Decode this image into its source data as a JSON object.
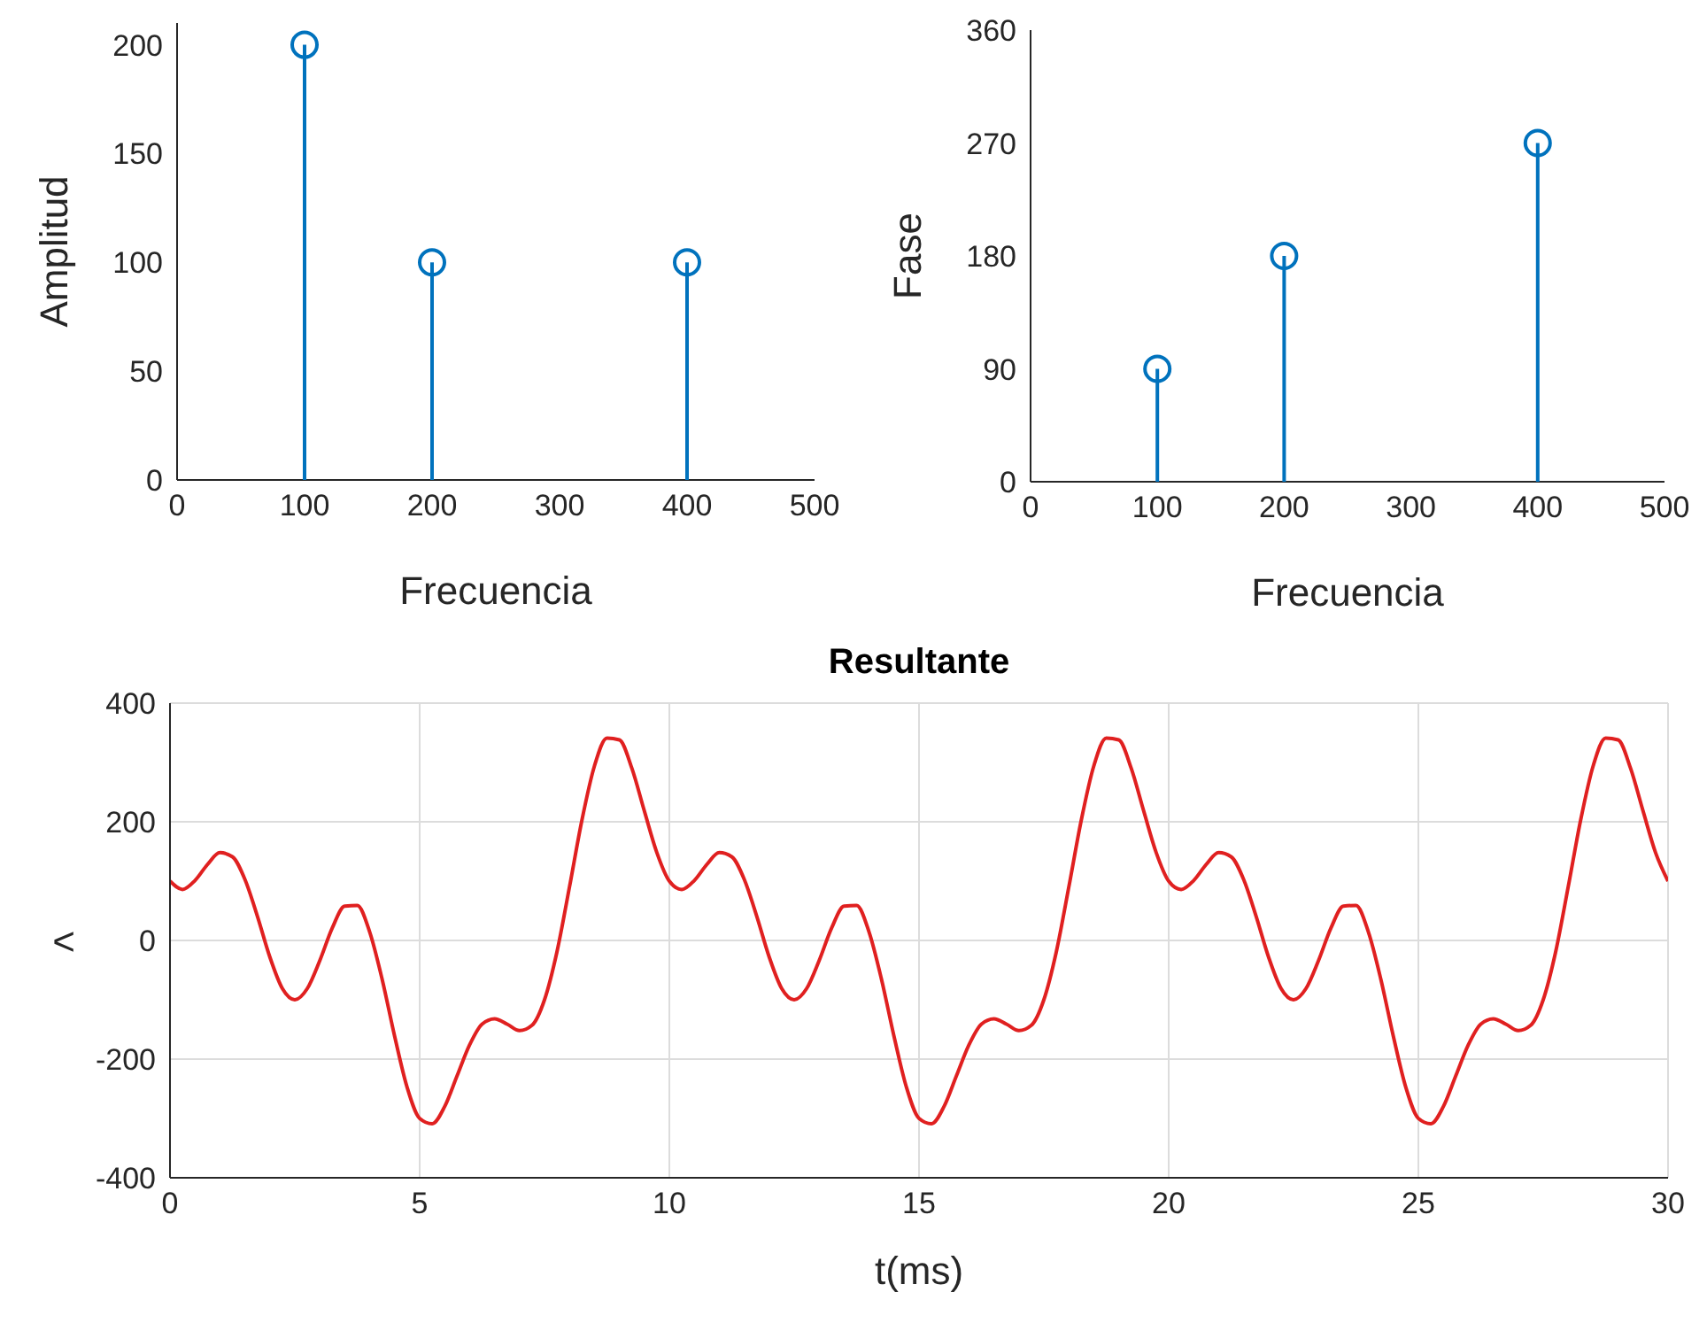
{
  "chart_data": [
    {
      "type": "lollipop",
      "xlabel": "Frecuencia",
      "ylabel": "Amplitud",
      "x": [
        100,
        200,
        400
      ],
      "values": [
        200,
        100,
        100
      ],
      "color": "#0072bd",
      "marker": "circle",
      "xlim": [
        0,
        500
      ],
      "xticks": [
        0,
        100,
        200,
        300,
        400,
        500
      ],
      "ylim": [
        0,
        210
      ],
      "yticks": [
        0,
        50,
        100,
        150,
        200
      ]
    },
    {
      "type": "lollipop",
      "xlabel": "Frecuencia",
      "ylabel": "Fase",
      "x": [
        100,
        200,
        400
      ],
      "values": [
        90,
        180,
        270
      ],
      "color": "#0072bd",
      "marker": "circle",
      "xlim": [
        0,
        500
      ],
      "xticks": [
        0,
        100,
        200,
        300,
        400,
        500
      ],
      "ylim": [
        0,
        360
      ],
      "yticks": [
        0,
        90,
        180,
        270,
        360
      ]
    },
    {
      "type": "line",
      "title": "Resultante",
      "xlabel": "t(ms)",
      "ylabel": "<",
      "color": "#e02020",
      "grid": true,
      "xlim": [
        0,
        30
      ],
      "xticks": [
        0,
        5,
        10,
        15,
        20,
        25,
        30
      ],
      "ylim": [
        -400,
        400
      ],
      "yticks": [
        -400,
        -200,
        0,
        200,
        400
      ],
      "x": [
        0,
        0.25,
        0.5,
        0.75,
        1,
        1.25,
        1.5,
        1.75,
        2,
        2.25,
        2.5,
        2.75,
        3,
        3.25,
        3.5,
        3.75,
        4,
        4.25,
        4.5,
        4.75,
        5,
        5.25,
        5.5,
        5.75,
        6,
        6.25,
        6.5,
        6.75,
        7,
        7.25,
        7.5,
        7.75,
        8,
        8.25,
        8.5,
        8.75,
        9,
        9.25,
        9.5,
        9.75,
        10,
        10.25,
        10.5,
        10.75,
        11,
        11.25,
        11.5,
        11.75,
        12,
        12.25,
        12.5,
        12.75,
        13,
        13.25,
        13.5,
        13.75,
        14,
        14.25,
        14.5,
        14.75,
        15,
        15.25,
        15.5,
        15.75,
        16,
        16.25,
        16.5,
        16.75,
        17,
        17.25,
        17.5,
        17.75,
        18,
        18.25,
        18.5,
        18.75,
        19,
        19.25,
        19.5,
        19.75,
        20,
        20.25,
        20.5,
        20.75,
        21,
        21.25,
        21.5,
        21.75,
        22,
        22.25,
        22.5,
        22.75,
        23,
        23.25,
        23.5,
        23.75,
        24,
        24.25,
        24.5,
        24.75,
        25,
        25.25,
        25.5,
        25.75,
        26,
        26.25,
        26.5,
        26.75,
        27,
        27.25,
        27.5,
        27.75,
        28,
        28.25,
        28.5,
        28.75,
        29,
        29.25,
        29.5,
        29.75,
        30
      ],
      "values": [
        100,
        86,
        101,
        128,
        148,
        141,
        103,
        41,
        -28,
        -81,
        -100,
        -81,
        -34,
        21,
        58,
        59,
        14,
        -66,
        -162,
        -248,
        -300,
        -309,
        -280,
        -228,
        -176,
        -141,
        -132,
        -141,
        -152,
        -143,
        -100,
        -19,
        90,
        203,
        294,
        341,
        338,
        290,
        218,
        148,
        100,
        86,
        101,
        128,
        148,
        141,
        103,
        41,
        -28,
        -81,
        -100,
        -81,
        -34,
        21,
        58,
        59,
        14,
        -66,
        -162,
        -248,
        -300,
        -309,
        -280,
        -228,
        -176,
        -141,
        -132,
        -141,
        -152,
        -143,
        -100,
        -19,
        90,
        203,
        294,
        341,
        338,
        290,
        218,
        148,
        100,
        86,
        101,
        128,
        148,
        141,
        103,
        41,
        -28,
        -81,
        -100,
        -81,
        -34,
        21,
        58,
        59,
        14,
        -66,
        -162,
        -248,
        -300,
        -309,
        -280,
        -228,
        -176,
        -141,
        -132,
        -141,
        -152,
        -143,
        -100,
        -19,
        90,
        203,
        294,
        341,
        338,
        290,
        218,
        148,
        100
      ]
    }
  ]
}
